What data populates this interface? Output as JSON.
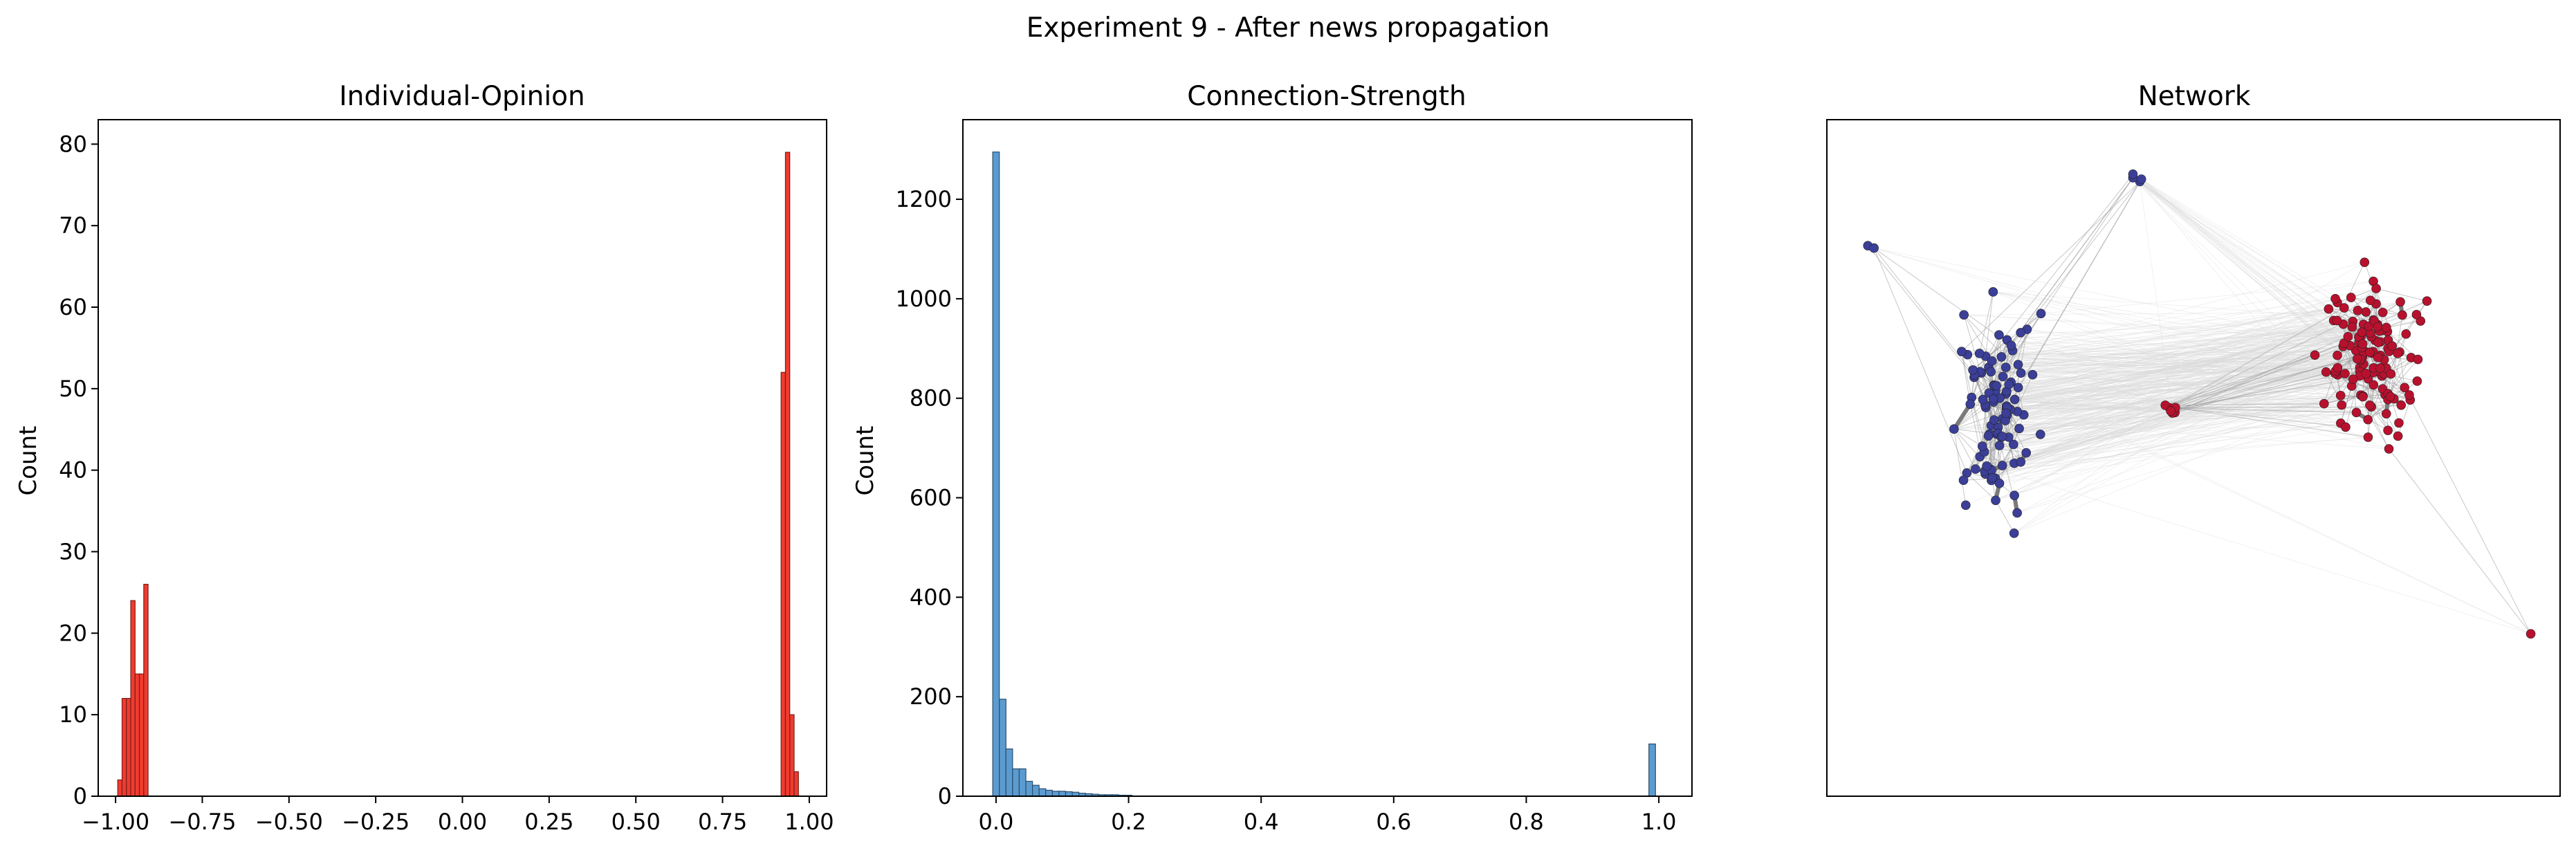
{
  "suptitle": "Experiment 9 - After news propagation",
  "chart_data": [
    {
      "type": "bar",
      "panel": "histogram",
      "title": "Individual-Opinion",
      "xlabel": "",
      "ylabel": "Count",
      "xlim": [
        -1.05,
        1.05
      ],
      "ylim": [
        0,
        83
      ],
      "xticks": [
        -1.0,
        -0.75,
        -0.5,
        -0.25,
        0.0,
        0.25,
        0.5,
        0.75,
        1.0
      ],
      "xtick_labels": [
        "−1.00",
        "−0.75",
        "−0.50",
        "−0.25",
        "0.00",
        "0.25",
        "0.50",
        "0.75",
        "1.00"
      ],
      "yticks": [
        0,
        10,
        20,
        30,
        40,
        50,
        60,
        70,
        80
      ],
      "bin_width": 0.0125,
      "bins": [
        {
          "x": -0.9875,
          "count": 2
        },
        {
          "x": -0.975,
          "count": 12
        },
        {
          "x": -0.9625,
          "count": 12
        },
        {
          "x": -0.95,
          "count": 24
        },
        {
          "x": -0.9375,
          "count": 15
        },
        {
          "x": -0.925,
          "count": 15
        },
        {
          "x": -0.9125,
          "count": 26
        },
        {
          "x": 0.925,
          "count": 52
        },
        {
          "x": 0.9375,
          "count": 79
        },
        {
          "x": 0.95,
          "count": 10
        },
        {
          "x": 0.9625,
          "count": 3
        }
      ],
      "color": "#f03b2f",
      "edge_color": "#7a1f18"
    },
    {
      "type": "bar",
      "panel": "histogram",
      "title": "Connection-Strength",
      "xlabel": "",
      "ylabel": "Count",
      "xlim": [
        -0.05,
        1.05
      ],
      "ylim": [
        0,
        1360
      ],
      "xticks": [
        0.0,
        0.2,
        0.4,
        0.6,
        0.8,
        1.0
      ],
      "xtick_labels": [
        "0.0",
        "0.2",
        "0.4",
        "0.6",
        "0.8",
        "1.0"
      ],
      "yticks": [
        0,
        200,
        400,
        600,
        800,
        1000,
        1200
      ],
      "bin_width": 0.01,
      "bins": [
        {
          "x": 0.0,
          "count": 1295
        },
        {
          "x": 0.01,
          "count": 195
        },
        {
          "x": 0.02,
          "count": 95
        },
        {
          "x": 0.03,
          "count": 55
        },
        {
          "x": 0.04,
          "count": 55
        },
        {
          "x": 0.05,
          "count": 30
        },
        {
          "x": 0.06,
          "count": 22
        },
        {
          "x": 0.07,
          "count": 15
        },
        {
          "x": 0.08,
          "count": 12
        },
        {
          "x": 0.09,
          "count": 10
        },
        {
          "x": 0.1,
          "count": 10
        },
        {
          "x": 0.11,
          "count": 9
        },
        {
          "x": 0.12,
          "count": 8
        },
        {
          "x": 0.13,
          "count": 6
        },
        {
          "x": 0.14,
          "count": 5
        },
        {
          "x": 0.15,
          "count": 4
        },
        {
          "x": 0.16,
          "count": 3
        },
        {
          "x": 0.17,
          "count": 3
        },
        {
          "x": 0.18,
          "count": 3
        },
        {
          "x": 0.19,
          "count": 2
        },
        {
          "x": 0.2,
          "count": 2
        },
        {
          "x": 0.99,
          "count": 105
        }
      ],
      "color": "#5b9bd0",
      "edge_color": "#2c4f6e"
    },
    {
      "type": "network",
      "title": "Network",
      "node_colors": {
        "negative": "#3b3f98",
        "positive": "#b8112e"
      },
      "edge_color_strong": "#7a7a7a",
      "edge_color_weak": "#d9d9d9",
      "clusters": [
        {
          "group": "negative",
          "center": [
            0.23,
            0.43
          ],
          "spread": [
            0.09,
            0.26
          ],
          "nodes": 96
        },
        {
          "group": "positive",
          "center": [
            0.74,
            0.35
          ],
          "spread": [
            0.11,
            0.2
          ],
          "nodes": 124
        },
        {
          "group": "positive",
          "center": [
            0.47,
            0.43
          ],
          "spread": [
            0.02,
            0.02
          ],
          "nodes": 6
        },
        {
          "group": "negative",
          "center": [
            0.42,
            0.08
          ],
          "spread": [
            0.02,
            0.03
          ],
          "nodes": 4
        },
        {
          "group": "negative",
          "center": [
            0.06,
            0.19
          ],
          "spread": [
            0.01,
            0.01
          ],
          "nodes": 2
        },
        {
          "group": "positive",
          "center": [
            0.96,
            0.76
          ],
          "spread": [
            0.0,
            0.0
          ],
          "nodes": 1
        }
      ]
    }
  ]
}
